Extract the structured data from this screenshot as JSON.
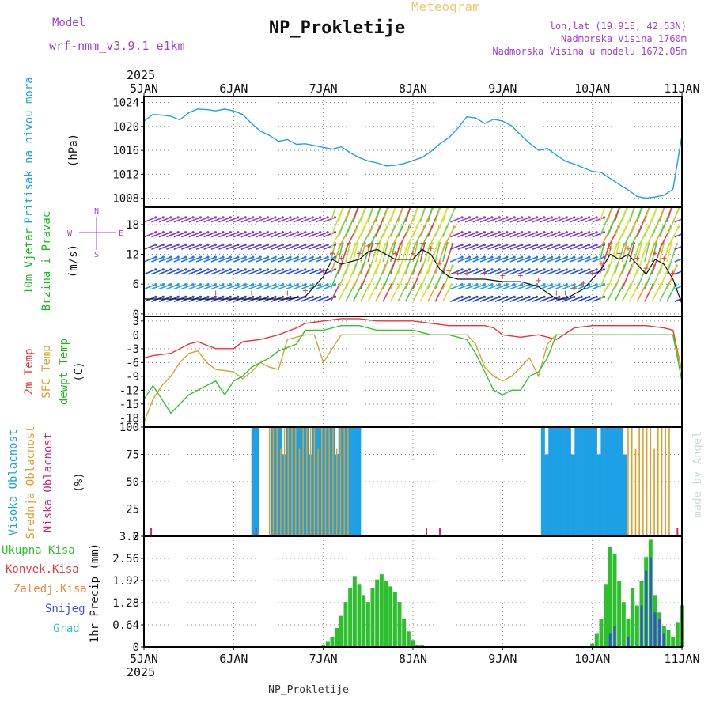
{
  "header": {
    "model_label": "Model",
    "model_name": "wrf-nmm_v3.9.1  e1km",
    "app_title": "Meteogram",
    "station": "NP_Prokletije",
    "coords": "lon,lat (19.91E, 42.53N)",
    "elevation": "Nadmorska Visina 1760m",
    "model_elevation": "Nadmorska Visina u modelu 1672.05m"
  },
  "footer": {
    "station": "NP_Prokletije",
    "watermark": "made by Angel"
  },
  "time_axis": {
    "year": "2025",
    "labels": [
      "5JAN",
      "6JAN",
      "7JAN",
      "8JAN",
      "9JAN",
      "10JAN",
      "11JAN"
    ]
  },
  "colors": {
    "pressure": "#1ea0e6",
    "temp2m": "#e8343a",
    "sfc_temp": "#d8a030",
    "dewpoint": "#2dc82d",
    "clouds_high": "#1ea0e6",
    "clouds_mid": "#d8a030",
    "clouds_low": "#c8287a",
    "precip_total": "#2dbf2d",
    "precip_conv": "#e83a3a",
    "precip_frozen": "#ee8a3a",
    "snow": "#3a50d8",
    "hail": "#30c8c0",
    "wind_label": "#18b818",
    "wind_dir": "#a040d0"
  },
  "chart_data": [
    {
      "panel": "pressure",
      "type": "line",
      "ylabel_name": "Pritisak na nivou mora",
      "units": "(hPa)",
      "ylim": [
        1006.5,
        1025
      ],
      "yticks": [
        "1008",
        "1012",
        "1016",
        "1020",
        "1024"
      ],
      "xlim": [
        0,
        6
      ],
      "grid": true,
      "series": [
        {
          "x": [
            0,
            0.1,
            0.2,
            0.3,
            0.4,
            0.5,
            0.6,
            0.7,
            0.8,
            0.9,
            1.0,
            1.1,
            1.2,
            1.3,
            1.4,
            1.5,
            1.6,
            1.7,
            1.8,
            1.9,
            2.0,
            2.1,
            2.2,
            2.3,
            2.4,
            2.5,
            2.6,
            2.7,
            2.8,
            2.9,
            3.0,
            3.1,
            3.2,
            3.3,
            3.4,
            3.5,
            3.6,
            3.7,
            3.8,
            3.9,
            4.0,
            4.1,
            4.2,
            4.3,
            4.4,
            4.5,
            4.6,
            4.7,
            4.8,
            4.9,
            5.0,
            5.1,
            5.2,
            5.3,
            5.4,
            5.5,
            5.6,
            5.7,
            5.8,
            5.9,
            6.0
          ],
          "y": [
            1020.9,
            1022.0,
            1021.9,
            1021.7,
            1021.1,
            1022.3,
            1022.9,
            1022.8,
            1022.6,
            1022.9,
            1022.6,
            1022.0,
            1020.5,
            1019.2,
            1018.5,
            1017.5,
            1017.8,
            1017.0,
            1017.1,
            1016.8,
            1016.5,
            1016.2,
            1016.6,
            1015.6,
            1014.8,
            1014.2,
            1013.9,
            1013.4,
            1013.5,
            1013.8,
            1014.3,
            1014.8,
            1015.8,
            1017.1,
            1018.1,
            1019.7,
            1021.6,
            1021.4,
            1020.5,
            1021.2,
            1020.9,
            1020.1,
            1018.6,
            1017.2,
            1016.0,
            1016.3,
            1015.2,
            1014.2,
            1013.7,
            1013.1,
            1012.5,
            1012.3,
            1011.3,
            1010.3,
            1009.4,
            1008.3,
            1008.0,
            1008.2,
            1008.5,
            1009.5,
            1018.5
          ]
        }
      ]
    },
    {
      "panel": "wind",
      "type": "line",
      "ylabel_name": "10m Vjetar",
      "ylabel_name2": "Brzina i Pravac",
      "units": "(m/s)",
      "compass": "N",
      "compass_e": "E",
      "compass_w": "W",
      "compass_s": "S",
      "ylim": [
        -0.5,
        21.5
      ],
      "yticks": [
        "0",
        "6",
        "12",
        "18"
      ],
      "xlim": [
        0,
        6
      ],
      "grid": true,
      "series": [
        {
          "name_key": "speed",
          "x": [
            0,
            0.4,
            0.8,
            1.2,
            1.6,
            1.8,
            2.0,
            2.1,
            2.2,
            2.4,
            2.5,
            2.6,
            2.8,
            3.0,
            3.1,
            3.2,
            3.3,
            3.4,
            3.5,
            3.6,
            3.8,
            4.0,
            4.2,
            4.4,
            4.6,
            4.7,
            4.8,
            4.9,
            5.0,
            5.1,
            5.2,
            5.3,
            5.4,
            5.5,
            5.6,
            5.7,
            5.8,
            5.9,
            6.0
          ],
          "y": [
            3,
            3,
            3,
            3,
            3,
            3.5,
            7.5,
            11,
            10,
            11,
            12.5,
            13,
            11,
            11,
            13,
            12,
            9,
            7.5,
            7,
            7,
            7,
            6.5,
            6.5,
            5.5,
            3,
            3,
            4,
            5,
            7,
            9,
            12,
            11,
            12,
            10,
            8,
            11,
            10,
            7,
            2
          ]
        }
      ]
    },
    {
      "panel": "temperature",
      "type": "line",
      "ylabel_name": "2m Temp",
      "ylabel_name2": "SFC Temp",
      "ylabel_name3": "dewpt Temp",
      "units": "(C)",
      "ylim": [
        -20,
        4
      ],
      "yticks": [
        "3",
        "0",
        "-3",
        "-6",
        "-9",
        "-12",
        "-15",
        "-18"
      ],
      "xlim": [
        0,
        6
      ],
      "grid": true,
      "series": [
        {
          "name_key": "t2m",
          "x": [
            0,
            0.1,
            0.3,
            0.5,
            0.6,
            0.8,
            1.0,
            1.1,
            1.3,
            1.5,
            1.7,
            1.8,
            2.0,
            2.2,
            2.4,
            2.6,
            2.8,
            3.0,
            3.2,
            3.4,
            3.6,
            3.8,
            3.9,
            4.0,
            4.2,
            4.4,
            4.6,
            4.8,
            5.0,
            5.2,
            5.4,
            5.6,
            5.8,
            5.9,
            6.0
          ],
          "y": [
            -5,
            -4.5,
            -4,
            -2,
            -1.5,
            -3,
            -3,
            -1.5,
            -1,
            0,
            1.5,
            2.5,
            3,
            3.5,
            3.5,
            3,
            3,
            3,
            2.5,
            2,
            2,
            2,
            1.5,
            0,
            -0.5,
            0,
            -1,
            1.5,
            2,
            2,
            2,
            2,
            1.5,
            1,
            -8
          ]
        },
        {
          "name_key": "sfc",
          "x": [
            0,
            0.1,
            0.2,
            0.3,
            0.4,
            0.5,
            0.6,
            0.7,
            0.8,
            1.0,
            1.1,
            1.2,
            1.3,
            1.4,
            1.5,
            1.6,
            1.8,
            1.9,
            2.0,
            2.2,
            2.4,
            2.6,
            2.8,
            3.0,
            3.2,
            3.4,
            3.5,
            3.6,
            3.7,
            3.8,
            3.9,
            4.0,
            4.1,
            4.2,
            4.3,
            4.4,
            4.5,
            4.6,
            4.8,
            5.0,
            5.2,
            5.4,
            5.6,
            5.8,
            5.9,
            6.0
          ],
          "y": [
            -19,
            -14,
            -11,
            -9,
            -6,
            -4,
            -3.5,
            -6,
            -7.5,
            -8,
            -9.5,
            -8,
            -6,
            -7,
            -7.5,
            -1,
            0,
            0,
            -6,
            0,
            0,
            0,
            0,
            0,
            0,
            0,
            0,
            0,
            -2,
            -7,
            -9,
            -10,
            -9,
            -7,
            -5,
            -9,
            -2,
            0,
            0,
            0,
            0,
            0,
            0,
            0,
            0,
            -8
          ]
        },
        {
          "name_key": "dew",
          "x": [
            0,
            0.1,
            0.2,
            0.3,
            0.4,
            0.5,
            0.6,
            0.8,
            0.9,
            1.0,
            1.1,
            1.2,
            1.3,
            1.4,
            1.5,
            1.7,
            1.8,
            2.0,
            2.2,
            2.4,
            2.6,
            2.8,
            3.0,
            3.2,
            3.4,
            3.6,
            3.7,
            3.8,
            3.9,
            4.0,
            4.1,
            4.2,
            4.3,
            4.4,
            4.5,
            4.6,
            4.8,
            5.0,
            5.2,
            5.4,
            5.6,
            5.8,
            5.9,
            6.0
          ],
          "y": [
            -14,
            -11,
            -14,
            -17,
            -15,
            -13,
            -12,
            -10,
            -13,
            -10,
            -9,
            -7,
            -6,
            -5,
            -3.5,
            -2,
            1,
            1,
            2,
            2,
            1,
            1,
            1,
            0,
            0,
            -1,
            -4,
            -8,
            -12,
            -13,
            -12,
            -12,
            -9,
            -8,
            -5,
            0,
            0,
            0,
            0,
            0,
            0,
            0,
            0,
            -10
          ]
        }
      ]
    },
    {
      "panel": "clouds",
      "type": "bar",
      "ylabel_name": "Visoka Oblacnost",
      "ylabel_name2": "Srednja Oblacnost",
      "ylabel_name3": "Niska Oblacnost",
      "units": "(%)",
      "ylim": [
        0,
        100
      ],
      "yticks": [
        "0",
        "25",
        "50",
        "75",
        "100"
      ],
      "xlim": [
        0,
        6
      ],
      "grid": true,
      "high_periods": [
        [
          1.22,
          1.27
        ],
        [
          1.44,
          2.42
        ],
        [
          4.45,
          5.4
        ]
      ],
      "mid_periods": [
        [
          1.4,
          2.3
        ],
        [
          5.4,
          5.9
        ]
      ],
      "low_ticks": [
        0.08,
        1.25,
        3.15,
        3.3,
        5.95
      ]
    },
    {
      "panel": "precip",
      "type": "bar",
      "ylabel_name": "1hr Precip",
      "units": "(mm)",
      "ylim": [
        0,
        3.2
      ],
      "yticks": [
        "0",
        "0.64",
        "1.28",
        "1.92",
        "2.56",
        "3.2"
      ],
      "xlim": [
        0,
        6
      ],
      "grid": true,
      "legend": [
        "Ukupna  Kisa",
        "Konvek.Kisa",
        "Zaledj.Kisa",
        "Snijeg",
        "Grad"
      ],
      "total": {
        "x": [
          2.0,
          2.05,
          2.1,
          2.15,
          2.2,
          2.25,
          2.3,
          2.35,
          2.4,
          2.45,
          2.5,
          2.55,
          2.6,
          2.65,
          2.7,
          2.75,
          2.8,
          2.85,
          2.9,
          2.95,
          3.0,
          3.05,
          3.1,
          3.15,
          3.2,
          5.0,
          5.05,
          5.1,
          5.15,
          5.2,
          5.25,
          5.3,
          5.35,
          5.4,
          5.45,
          5.5,
          5.55,
          5.6,
          5.65,
          5.7,
          5.75,
          5.8,
          5.85,
          5.9,
          5.95,
          6.0
        ],
        "y": [
          0.05,
          0.15,
          0.3,
          0.55,
          0.9,
          1.3,
          1.7,
          2.05,
          1.8,
          1.5,
          1.3,
          1.7,
          1.95,
          2.1,
          1.9,
          1.75,
          1.6,
          1.3,
          0.8,
          0.45,
          0.2,
          0.05,
          0.05,
          0.0,
          0.0,
          0.1,
          0.4,
          0.8,
          1.8,
          2.9,
          2.7,
          1.9,
          1.3,
          0.8,
          1.7,
          1.2,
          1.9,
          2.6,
          3.1,
          1.5,
          1.0,
          0.6,
          0.5,
          0.3,
          0.7,
          1.2
        ]
      },
      "snow": {
        "x": [
          5.2,
          5.25,
          5.4,
          5.55,
          5.6,
          5.65,
          5.7,
          5.75,
          5.8
        ],
        "y": [
          0.4,
          0.6,
          0.3,
          1.2,
          2.2,
          2.6,
          1.0,
          0.8,
          0.4
        ]
      }
    }
  ]
}
